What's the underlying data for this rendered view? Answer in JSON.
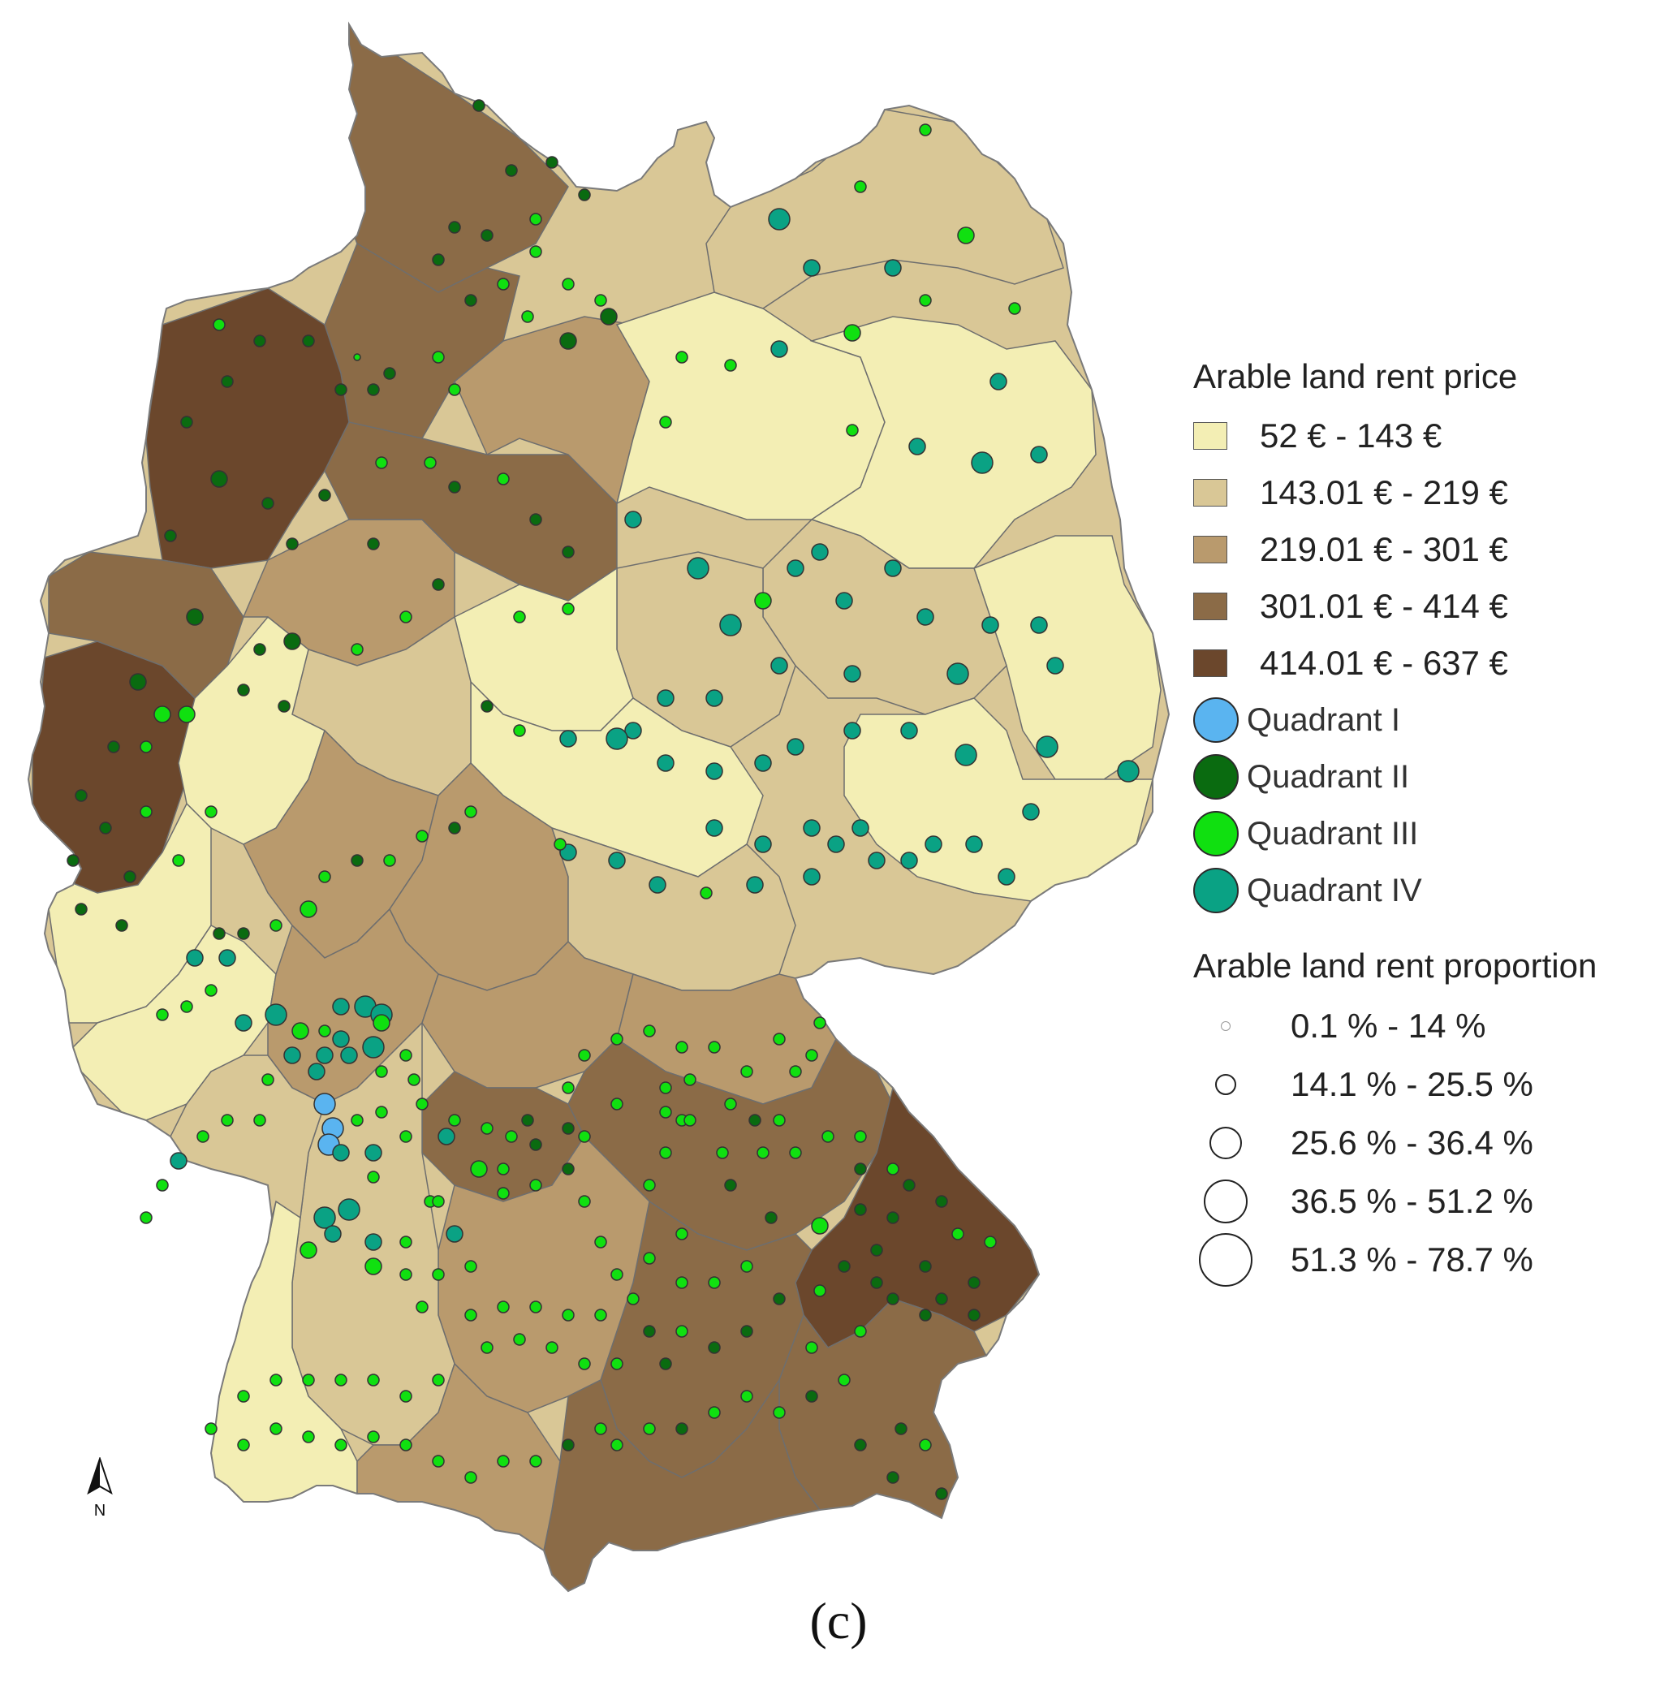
{
  "legend": {
    "price_title": "Arable land rent price",
    "price_classes": [
      {
        "label": "52 € - 143 €",
        "color": "#f3eeb4"
      },
      {
        "label": "143.01 € - 219 €",
        "color": "#d9c796"
      },
      {
        "label": "219.01 € - 301 €",
        "color": "#b99a6d"
      },
      {
        "label": "301.01 € - 414 €",
        "color": "#8b6b47"
      },
      {
        "label": "414.01 € - 637 €",
        "color": "#6b472c"
      }
    ],
    "quadrants": [
      {
        "label": "Quadrant I",
        "color": "#5ab4f0"
      },
      {
        "label": "Quadrant II",
        "color": "#0a6b10"
      },
      {
        "label": "Quadrant III",
        "color": "#10e010"
      },
      {
        "label": "Quadrant IV",
        "color": "#0aa284"
      }
    ],
    "proportion_title": "Arable land rent proportion",
    "proportion_classes": [
      {
        "label": "0.1 % - 14 %"
      },
      {
        "label": "14.1 % - 25.5 %"
      },
      {
        "label": "25.6 % - 36.4 %"
      },
      {
        "label": "36.5 % - 51.2 %"
      },
      {
        "label": "51.3 % - 78.7 %"
      }
    ]
  },
  "north_arrow": {
    "label": "N"
  },
  "caption": "(c)",
  "colors": {
    "border": "#6e6e6e",
    "symbol_outline": "#333333"
  }
}
